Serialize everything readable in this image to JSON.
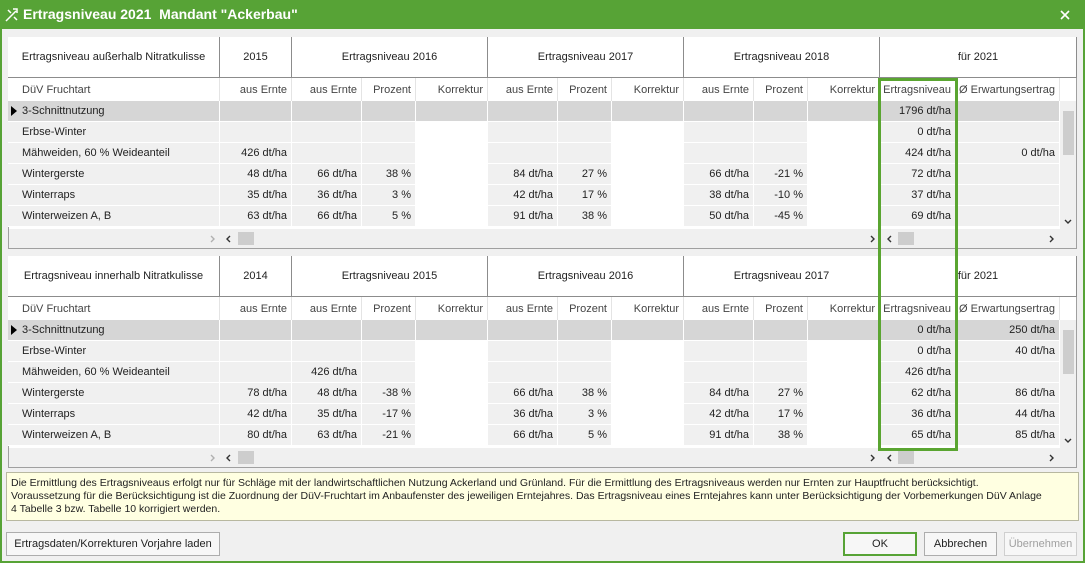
{
  "title": "Ertragsniveau 2021  Mandant \"Ackerbau\"",
  "tables": [
    {
      "group_headers": [
        "Ertragsniveau außerhalb Nitratkulisse",
        "2015",
        "Ertragsniveau 2016",
        "Ertragsniveau 2017",
        "Ertragsniveau 2018",
        "für 2021"
      ],
      "column_headers": [
        "DüV Fruchtart",
        "aus Ernte",
        "aus Ernte",
        "Prozent",
        "Korrektur",
        "aus Ernte",
        "Prozent",
        "Korrektur",
        "aus Ernte",
        "Prozent",
        "Korrektur",
        "Ertragsniveau",
        "Ø Erwartungsertrag"
      ],
      "rows": [
        [
          "3-Schnittnutzung",
          null,
          null,
          null,
          null,
          null,
          null,
          null,
          null,
          null,
          null,
          "1796 dt/ha",
          null
        ],
        [
          "Erbse-Winter",
          null,
          null,
          null,
          null,
          null,
          null,
          null,
          null,
          null,
          null,
          "0 dt/ha",
          null
        ],
        [
          "Mähweiden, 60 % Weideanteil",
          "426 dt/ha",
          null,
          null,
          null,
          null,
          null,
          null,
          null,
          null,
          null,
          "424 dt/ha",
          "0 dt/ha"
        ],
        [
          "Wintergerste",
          "48 dt/ha",
          "66 dt/ha",
          "38 %",
          null,
          "84 dt/ha",
          "27 %",
          null,
          "66 dt/ha",
          "-21 %",
          null,
          "72 dt/ha",
          null
        ],
        [
          "Winterraps",
          "35 dt/ha",
          "36 dt/ha",
          "3 %",
          null,
          "42 dt/ha",
          "17 %",
          null,
          "38 dt/ha",
          "-10 %",
          null,
          "37 dt/ha",
          null
        ],
        [
          "Winterweizen A, B",
          "63 dt/ha",
          "66 dt/ha",
          "5 %",
          null,
          "91 dt/ha",
          "38 %",
          null,
          "50 dt/ha",
          "-45 %",
          null,
          "69 dt/ha",
          null
        ]
      ]
    },
    {
      "group_headers": [
        "Ertragsniveau innerhalb Nitratkulisse",
        "2014",
        "Ertragsniveau 2015",
        "Ertragsniveau 2016",
        "Ertragsniveau 2017",
        "für 2021"
      ],
      "column_headers": [
        "DüV Fruchtart",
        "aus Ernte",
        "aus Ernte",
        "Prozent",
        "Korrektur",
        "aus Ernte",
        "Prozent",
        "Korrektur",
        "aus Ernte",
        "Prozent",
        "Korrektur",
        "Ertragsniveau",
        "Ø Erwartungsertrag"
      ],
      "rows": [
        [
          "3-Schnittnutzung",
          null,
          null,
          null,
          null,
          null,
          null,
          null,
          null,
          null,
          null,
          "0 dt/ha",
          "250 dt/ha"
        ],
        [
          "Erbse-Winter",
          null,
          null,
          null,
          null,
          null,
          null,
          null,
          null,
          null,
          null,
          "0 dt/ha",
          "40 dt/ha"
        ],
        [
          "Mähweiden, 60 % Weideanteil",
          null,
          "426 dt/ha",
          null,
          null,
          null,
          null,
          null,
          null,
          null,
          null,
          "426 dt/ha",
          null
        ],
        [
          "Wintergerste",
          "78 dt/ha",
          "48 dt/ha",
          "-38 %",
          null,
          "66 dt/ha",
          "38 %",
          null,
          "84 dt/ha",
          "27 %",
          null,
          "62 dt/ha",
          "86 dt/ha"
        ],
        [
          "Winterraps",
          "42 dt/ha",
          "35 dt/ha",
          "-17 %",
          null,
          "36 dt/ha",
          "3 %",
          null,
          "42 dt/ha",
          "17 %",
          null,
          "36 dt/ha",
          "44 dt/ha"
        ],
        [
          "Winterweizen A, B",
          "80 dt/ha",
          "63 dt/ha",
          "-21 %",
          null,
          "66 dt/ha",
          "5 %",
          null,
          "91 dt/ha",
          "38 %",
          null,
          "65 dt/ha",
          "85 dt/ha"
        ]
      ]
    }
  ],
  "info": {
    "lines": [
      "Die Ermittlung des Ertragsniveaus erfolgt nur für Schläge mit der landwirtschaftlichen Nutzung Ackerland und Grünland. Für die Ermittlung des Ertragsniveaus werden nur Ernten zur Hauptfrucht berücksichtigt.",
      "Voraussetzung für die Berücksichtigung ist die Zuordnung der DüV-Fruchtart im Anbaufenster des jeweiligen Erntejahres. Das Ertragsniveau eines Erntejahres kann unter Berücksichtigung der Vorbemerkungen DüV Anlage",
      "4 Tabelle 3 bzw. Tabelle 10 korrigiert werden."
    ]
  },
  "buttons": {
    "load": "Ertragsdaten/Korrekturen Vorjahre laden",
    "ok": "OK",
    "cancel": "Abbrechen",
    "apply": "Übernehmen"
  }
}
